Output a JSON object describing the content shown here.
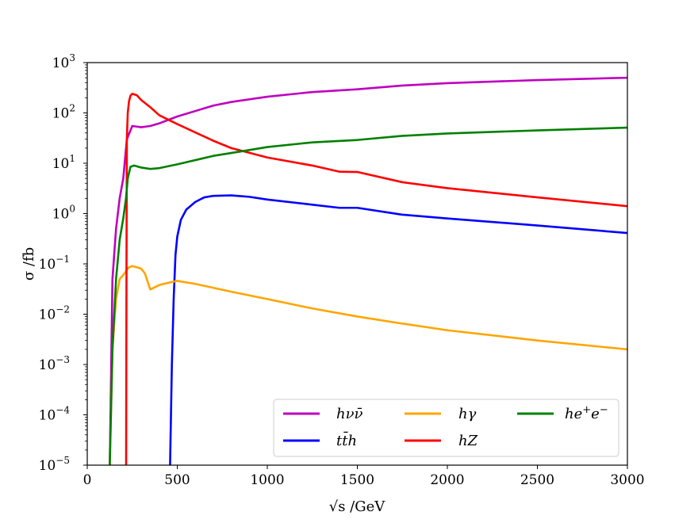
{
  "chart_data": {
    "type": "line",
    "title": "",
    "xlabel": "√s /GeV",
    "ylabel": "σ /fb",
    "xlim": [
      0,
      3000
    ],
    "ylim": [
      1e-05,
      1000
    ],
    "yscale": "log",
    "xticks": [
      0,
      500,
      1000,
      1500,
      2000,
      2500,
      3000
    ],
    "yticks": [
      {
        "base": "10",
        "exp": "−5",
        "value": 1e-05
      },
      {
        "base": "10",
        "exp": "−4",
        "value": 0.0001
      },
      {
        "base": "10",
        "exp": "−3",
        "value": 0.001
      },
      {
        "base": "10",
        "exp": "−2",
        "value": 0.01
      },
      {
        "base": "10",
        "exp": "−1",
        "value": 0.1
      },
      {
        "base": "10",
        "exp": "0",
        "value": 1
      },
      {
        "base": "10",
        "exp": "1",
        "value": 10
      },
      {
        "base": "10",
        "exp": "2",
        "value": 100
      },
      {
        "base": "10",
        "exp": "3",
        "value": 1000
      }
    ],
    "grid": false,
    "legend_position": "bottom-right",
    "series": [
      {
        "name": "hνν̄",
        "color": "#bf00bf",
        "points": [
          [
            125,
            1e-05
          ],
          [
            140,
            0.05
          ],
          [
            160,
            0.5
          ],
          [
            180,
            2
          ],
          [
            200,
            5
          ],
          [
            220,
            30
          ],
          [
            250,
            55
          ],
          [
            300,
            52
          ],
          [
            350,
            55
          ],
          [
            400,
            62
          ],
          [
            500,
            85
          ],
          [
            700,
            140
          ],
          [
            800,
            165
          ],
          [
            1000,
            210
          ],
          [
            1250,
            260
          ],
          [
            1500,
            295
          ],
          [
            1750,
            350
          ],
          [
            2000,
            390
          ],
          [
            2500,
            450
          ],
          [
            3000,
            500
          ]
        ]
      },
      {
        "name": "tt̄h",
        "color": "#0000ff",
        "points": [
          [
            460,
            1e-05
          ],
          [
            470,
            0.001
          ],
          [
            480,
            0.02
          ],
          [
            490,
            0.15
          ],
          [
            500,
            0.35
          ],
          [
            520,
            0.75
          ],
          [
            550,
            1.2
          ],
          [
            600,
            1.7
          ],
          [
            650,
            2.1
          ],
          [
            700,
            2.25
          ],
          [
            800,
            2.3
          ],
          [
            900,
            2.15
          ],
          [
            1000,
            1.9
          ],
          [
            1250,
            1.5
          ],
          [
            1400,
            1.3
          ],
          [
            1500,
            1.3
          ],
          [
            1750,
            0.95
          ],
          [
            2000,
            0.8
          ],
          [
            2500,
            0.58
          ],
          [
            3000,
            0.41
          ]
        ]
      },
      {
        "name": "hγ",
        "color": "#ffa500",
        "points": [
          [
            125,
            1e-05
          ],
          [
            140,
            0.002
          ],
          [
            160,
            0.02
          ],
          [
            180,
            0.05
          ],
          [
            200,
            0.06
          ],
          [
            230,
            0.085
          ],
          [
            250,
            0.09
          ],
          [
            280,
            0.085
          ],
          [
            300,
            0.08
          ],
          [
            320,
            0.065
          ],
          [
            350,
            0.031
          ],
          [
            400,
            0.038
          ],
          [
            450,
            0.042
          ],
          [
            500,
            0.046
          ],
          [
            600,
            0.04
          ],
          [
            800,
            0.028
          ],
          [
            1000,
            0.02
          ],
          [
            1250,
            0.013
          ],
          [
            1500,
            0.009
          ],
          [
            1750,
            0.0065
          ],
          [
            2000,
            0.0048
          ],
          [
            2500,
            0.003
          ],
          [
            3000,
            0.002
          ]
        ]
      },
      {
        "name": "hZ",
        "color": "#ff0000",
        "points": [
          [
            216,
            1e-05
          ],
          [
            218,
            0.1
          ],
          [
            220,
            30
          ],
          [
            225,
            100
          ],
          [
            232,
            170
          ],
          [
            240,
            220
          ],
          [
            250,
            240
          ],
          [
            275,
            225
          ],
          [
            300,
            180
          ],
          [
            350,
            130
          ],
          [
            400,
            90
          ],
          [
            500,
            60
          ],
          [
            700,
            28
          ],
          [
            800,
            20
          ],
          [
            1000,
            13
          ],
          [
            1250,
            9
          ],
          [
            1400,
            6.8
          ],
          [
            1500,
            6.7
          ],
          [
            1750,
            4.2
          ],
          [
            2000,
            3.2
          ],
          [
            2500,
            2.1
          ],
          [
            3000,
            1.4
          ]
        ]
      },
      {
        "name": "he⁺e⁻",
        "color": "#008000",
        "points": [
          [
            125,
            1e-05
          ],
          [
            140,
            0.002
          ],
          [
            160,
            0.05
          ],
          [
            180,
            0.3
          ],
          [
            200,
            0.8
          ],
          [
            215,
            2
          ],
          [
            225,
            5
          ],
          [
            240,
            8.5
          ],
          [
            260,
            9
          ],
          [
            300,
            8.2
          ],
          [
            350,
            7.7
          ],
          [
            400,
            8
          ],
          [
            500,
            9.5
          ],
          [
            700,
            14
          ],
          [
            800,
            16
          ],
          [
            1000,
            21
          ],
          [
            1250,
            26
          ],
          [
            1500,
            29
          ],
          [
            1750,
            35
          ],
          [
            2000,
            39
          ],
          [
            2500,
            45
          ],
          [
            3000,
            51
          ]
        ]
      }
    ]
  },
  "legend": {
    "items": [
      {
        "base": "hνν̄",
        "sup": ""
      },
      {
        "base": "hγ",
        "sup": ""
      },
      {
        "base": "he",
        "sup": "+",
        "base2": "e",
        "sup2": "−"
      },
      {
        "base": "tt̄h",
        "sup": ""
      },
      {
        "base": "hZ",
        "sup": ""
      }
    ]
  }
}
